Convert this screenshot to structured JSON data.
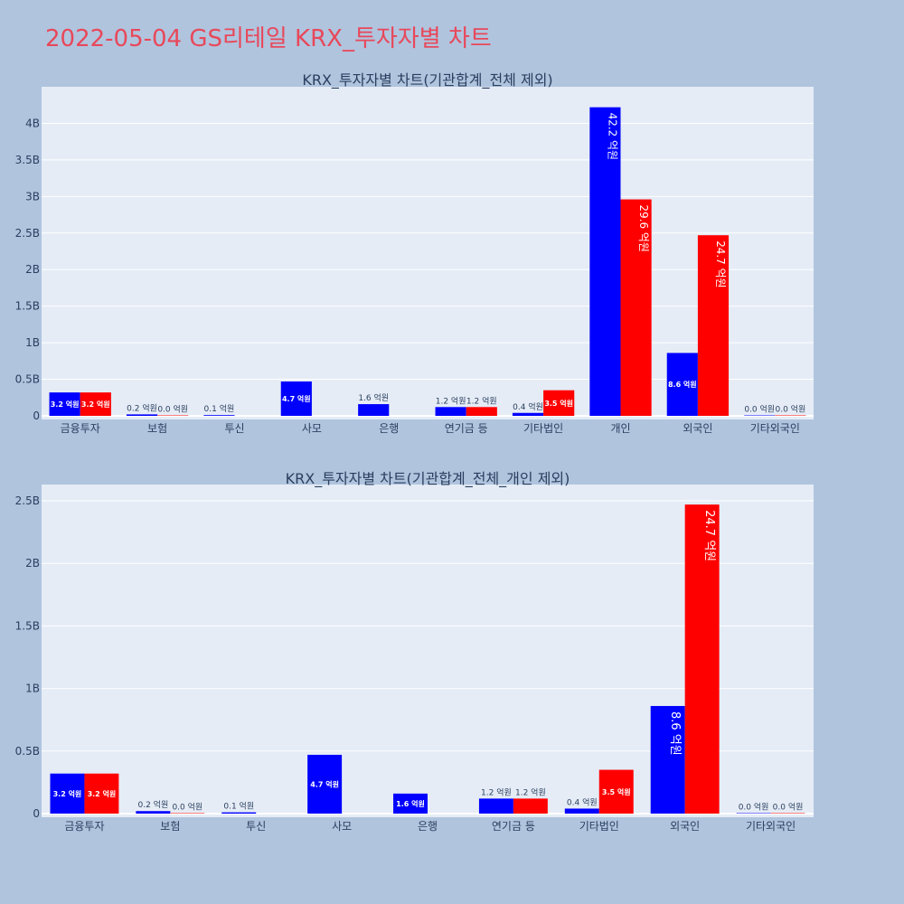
{
  "page": {
    "title": "2022-05-04 GS리테일 KRX_투자자별 차트"
  },
  "colors": {
    "background": "#b0c4de",
    "plot_bg": "#e5ecf6",
    "buy": "#0000ff",
    "sell": "#ff0000",
    "title": "#e8485a"
  },
  "chart_data": [
    {
      "type": "bar",
      "title": "KRX_투자자별 차트(기관합계_전체 제외)",
      "categories": [
        "금융투자",
        "보험",
        "투신",
        "사모",
        "은행",
        "연기금 등",
        "기타법인",
        "개인",
        "외국인",
        "기타외국인"
      ],
      "series": [
        {
          "color": "#0000ff",
          "values": [
            0.32,
            0.02,
            0.01,
            0.47,
            0.16,
            0.12,
            0.04,
            4.22,
            0.86,
            0.0
          ],
          "labels": [
            "3.2 억원",
            "0.2 억원",
            "0.1 억원",
            "4.7 억원",
            "1.6 억원",
            "1.2 억원",
            "0.4 억원",
            "42.2 억원",
            "8.6 억원",
            "0.0 억원"
          ]
        },
        {
          "color": "#ff0000",
          "values": [
            0.32,
            0.0,
            null,
            null,
            null,
            0.12,
            0.35,
            2.96,
            2.47,
            0.0
          ],
          "labels": [
            "3.2 억원",
            "0.0 억원",
            "",
            "",
            "",
            "1.2 억원",
            "3.5 억원",
            "29.6 억원",
            "24.7 억원",
            "0.0 억원"
          ]
        }
      ],
      "ylim": [
        0,
        4.5
      ],
      "ytick_values": [
        0,
        0.5,
        1,
        1.5,
        2,
        2.5,
        3,
        3.5,
        4
      ],
      "ytick_labels": [
        "0",
        "0.5B",
        "1B",
        "1.5B",
        "2B",
        "2.5B",
        "3B",
        "3.5B",
        "4B"
      ],
      "grid": true,
      "legend": "none"
    },
    {
      "type": "bar",
      "title": "KRX_투자자별 차트(기관합계_전체_개인 제외)",
      "categories": [
        "금융투자",
        "보험",
        "투신",
        "사모",
        "은행",
        "연기금 등",
        "기타법인",
        "외국인",
        "기타외국인"
      ],
      "series": [
        {
          "color": "#0000ff",
          "values": [
            0.32,
            0.02,
            0.01,
            0.47,
            0.16,
            0.12,
            0.04,
            0.86,
            0.0
          ],
          "labels": [
            "3.2 억원",
            "0.2 억원",
            "0.1 억원",
            "4.7 억원",
            "1.6 억원",
            "1.2 억원",
            "0.4 억원",
            "8.6 억원",
            "0.0 억원"
          ]
        },
        {
          "color": "#ff0000",
          "values": [
            0.32,
            0.0,
            null,
            null,
            null,
            0.12,
            0.35,
            2.47,
            0.0
          ],
          "labels": [
            "3.2 억원",
            "0.0 억원",
            "",
            "",
            "",
            "1.2 억원",
            "3.5 억원",
            "24.7 억원",
            "0.0 억원"
          ]
        }
      ],
      "ylim": [
        0,
        2.63
      ],
      "ytick_values": [
        0,
        0.5,
        1,
        1.5,
        2,
        2.5
      ],
      "ytick_labels": [
        "0",
        "0.5B",
        "1B",
        "1.5B",
        "2B",
        "2.5B"
      ],
      "grid": true,
      "legend": "none"
    }
  ]
}
